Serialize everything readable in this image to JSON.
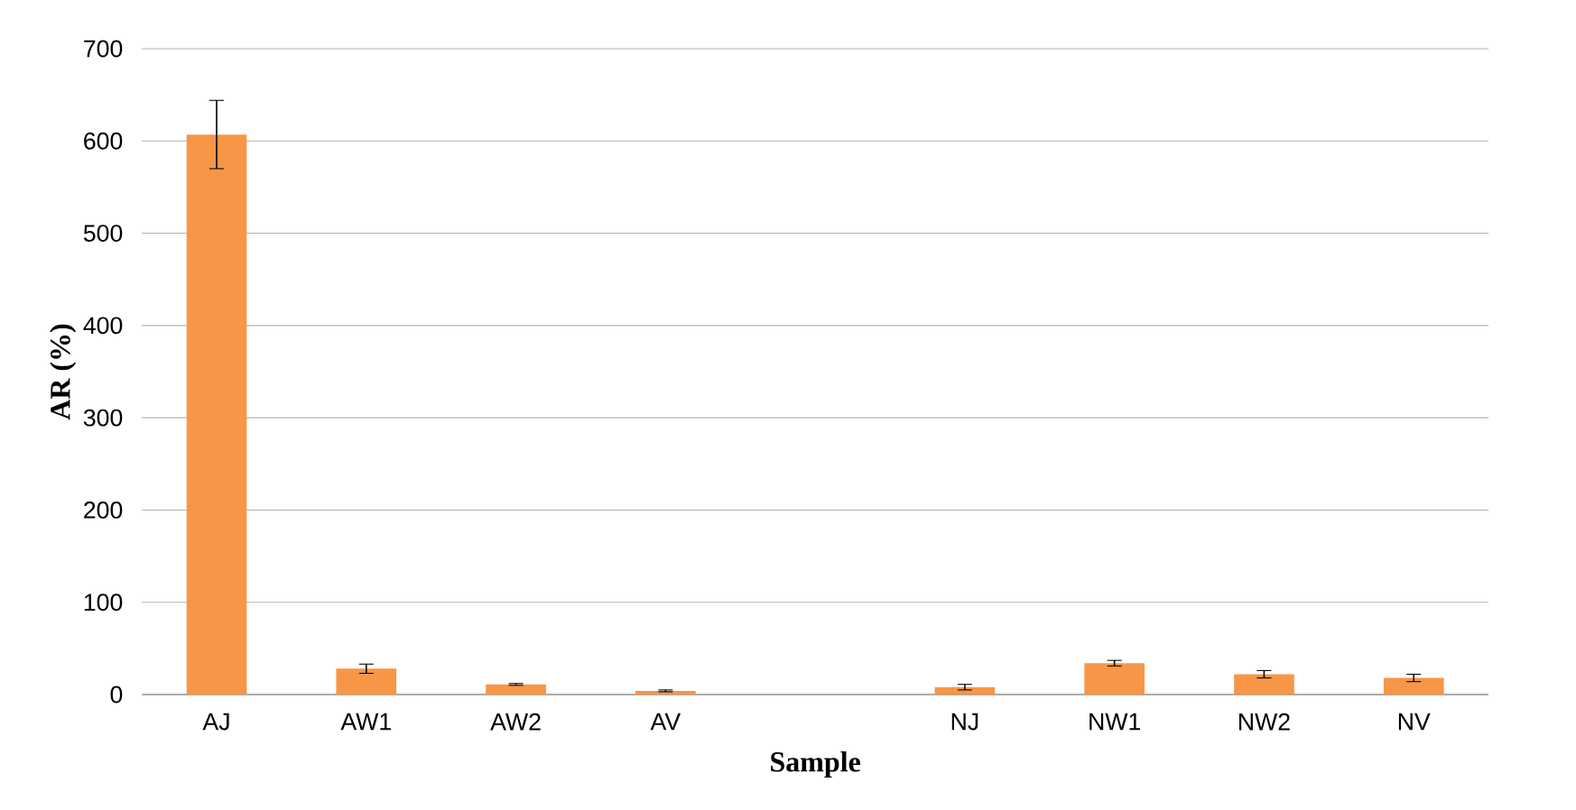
{
  "chart_data": {
    "type": "bar",
    "xlabel": "Sample",
    "ylabel": "AR (%)",
    "categories": [
      "AJ",
      "AW1",
      "AW2",
      "AV",
      null,
      "NJ",
      "NW1",
      "NW2",
      "NV"
    ],
    "values": [
      607,
      28,
      11,
      4,
      null,
      8,
      34,
      22,
      18
    ],
    "errors": [
      37,
      5,
      1,
      1,
      null,
      3,
      3,
      4,
      4
    ],
    "color": "#f79646",
    "ylim": [
      0,
      700
    ],
    "yticks": [
      0,
      100,
      200,
      300,
      400,
      500,
      600,
      700
    ],
    "grid": "y"
  }
}
